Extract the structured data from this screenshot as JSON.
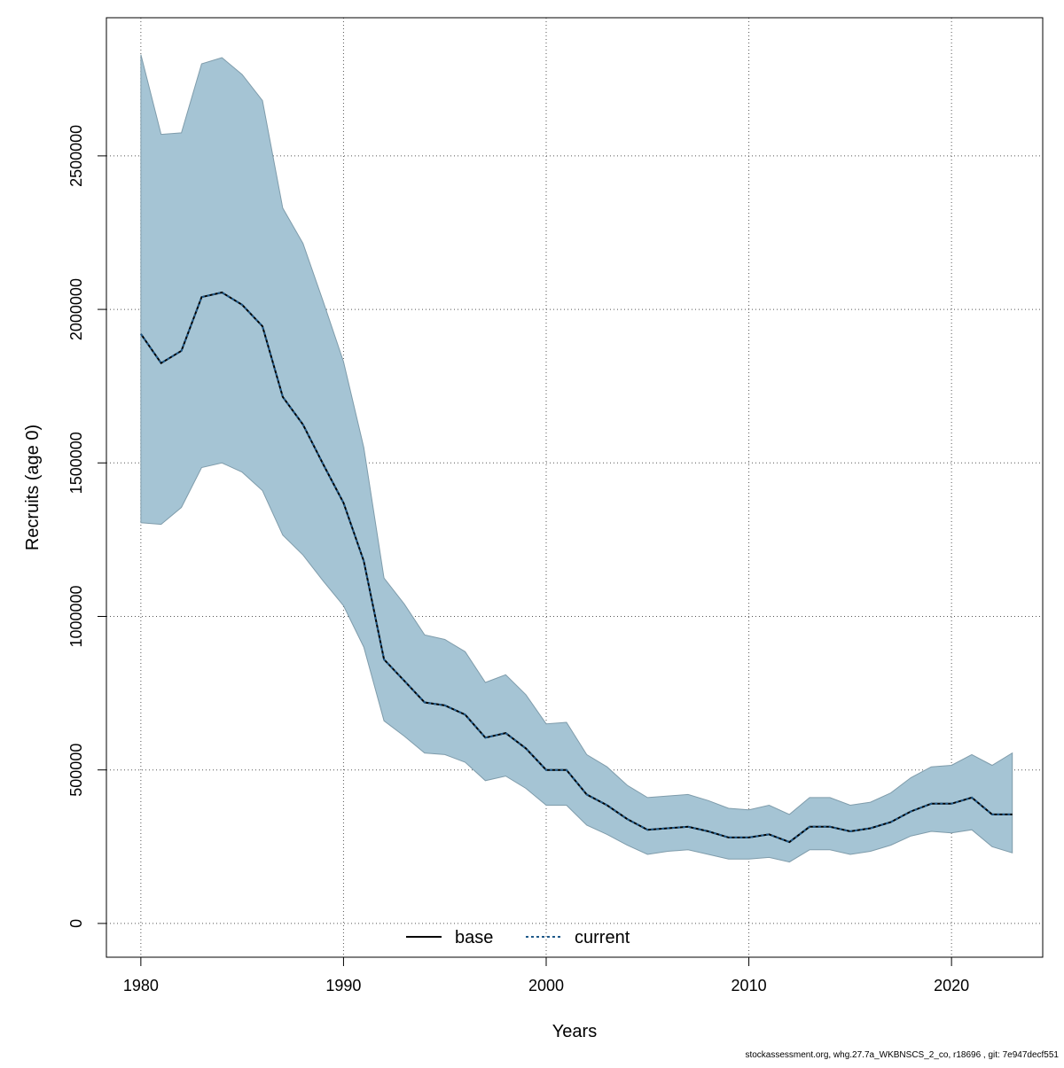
{
  "chart_data": {
    "type": "line",
    "title": "",
    "xlabel": "Years",
    "ylabel": "Recruits (age 0)",
    "xlim": [
      1978.3,
      2024.5
    ],
    "ylim": [
      -110000,
      2950000
    ],
    "xticks": [
      1980,
      1990,
      2000,
      2010,
      2020
    ],
    "yticks": [
      0,
      500000,
      1000000,
      1500000,
      2000000,
      2500000
    ],
    "ytick_labels": [
      "0",
      "500000",
      "1000000",
      "1500000",
      "2000000",
      "2500000"
    ],
    "grid": true,
    "legend": {
      "position": "bottom-center",
      "entries": [
        {
          "label": "base",
          "style": "solid",
          "color": "#000000"
        },
        {
          "label": "current",
          "style": "dashed",
          "color": "#1f5a8a"
        }
      ]
    },
    "colors": {
      "band": "#a5c4d4",
      "band_edge": "#7f9cab",
      "base": "#000000",
      "current": "#1f5a8a"
    },
    "x": [
      1980,
      1981,
      1982,
      1983,
      1984,
      1985,
      1986,
      1987,
      1988,
      1989,
      1990,
      1991,
      1992,
      1993,
      1994,
      1995,
      1996,
      1997,
      1998,
      1999,
      2000,
      2001,
      2002,
      2003,
      2004,
      2005,
      2006,
      2007,
      2008,
      2009,
      2010,
      2011,
      2012,
      2013,
      2014,
      2015,
      2016,
      2017,
      2018,
      2019,
      2020,
      2021,
      2022,
      2023
    ],
    "series": [
      {
        "name": "base",
        "values": [
          1920000,
          1825000,
          1865000,
          2040000,
          2055000,
          2015000,
          1945000,
          1715000,
          1625000,
          1495000,
          1370000,
          1180000,
          860000,
          790000,
          720000,
          710000,
          680000,
          605000,
          620000,
          570000,
          500000,
          500000,
          420000,
          385000,
          340000,
          305000,
          310000,
          315000,
          300000,
          280000,
          280000,
          290000,
          265000,
          315000,
          315000,
          300000,
          310000,
          330000,
          365000,
          390000,
          390000,
          410000,
          355000,
          355000
        ]
      },
      {
        "name": "current",
        "values": [
          1920000,
          1825000,
          1865000,
          2040000,
          2055000,
          2015000,
          1945000,
          1715000,
          1625000,
          1495000,
          1370000,
          1180000,
          860000,
          790000,
          720000,
          710000,
          680000,
          605000,
          620000,
          570000,
          500000,
          500000,
          420000,
          385000,
          340000,
          305000,
          310000,
          315000,
          300000,
          280000,
          280000,
          290000,
          265000,
          315000,
          315000,
          300000,
          310000,
          330000,
          365000,
          390000,
          390000,
          410000,
          355000,
          355000
        ]
      }
    ],
    "band": {
      "lower": [
        1305000,
        1300000,
        1355000,
        1485000,
        1500000,
        1470000,
        1410000,
        1265000,
        1200000,
        1115000,
        1035000,
        900000,
        660000,
        610000,
        555000,
        550000,
        525000,
        465000,
        480000,
        440000,
        385000,
        385000,
        320000,
        290000,
        255000,
        225000,
        235000,
        240000,
        225000,
        210000,
        210000,
        215000,
        200000,
        240000,
        240000,
        225000,
        235000,
        255000,
        285000,
        300000,
        295000,
        305000,
        250000,
        230000
      ],
      "upper": [
        2830000,
        2570000,
        2575000,
        2800000,
        2820000,
        2765000,
        2680000,
        2330000,
        2215000,
        2025000,
        1830000,
        1550000,
        1125000,
        1040000,
        940000,
        925000,
        885000,
        785000,
        810000,
        745000,
        650000,
        655000,
        550000,
        510000,
        450000,
        410000,
        415000,
        420000,
        400000,
        375000,
        370000,
        385000,
        355000,
        410000,
        410000,
        385000,
        395000,
        425000,
        475000,
        510000,
        515000,
        550000,
        515000,
        555000
      ]
    },
    "footer": "stockassessment.org, whg.27.7a_WKBNSCS_2_co, r18696 , git: 7e947decf551"
  }
}
